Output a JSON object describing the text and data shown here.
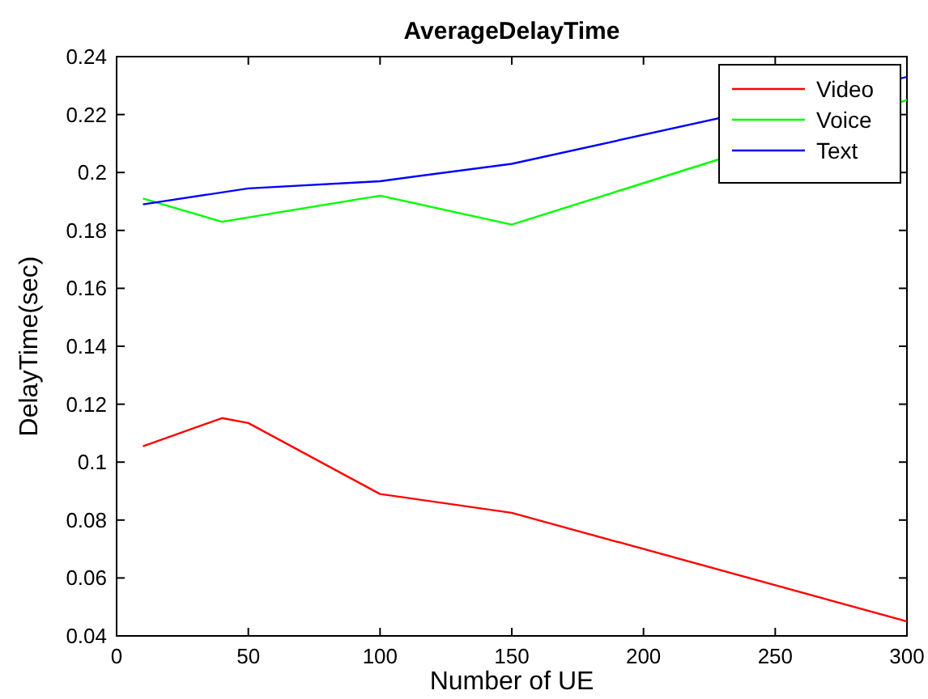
{
  "chart_data": {
    "type": "line",
    "title": "AverageDelayTime",
    "xlabel": "Number of UE",
    "ylabel": "DelayTime(sec)",
    "xlim": [
      0,
      300
    ],
    "xticks": [
      0,
      50,
      100,
      150,
      200,
      250,
      300
    ],
    "ylim": [
      0.04,
      0.24
    ],
    "yticks": [
      0.04,
      0.06,
      0.08,
      0.1,
      0.12,
      0.14,
      0.16,
      0.18,
      0.2,
      0.22,
      0.24
    ],
    "legend": "top right",
    "grid": false,
    "series": [
      {
        "name": "Video",
        "color": "#ff0000",
        "x": [
          10,
          40,
          50,
          100,
          150,
          300
        ],
        "values": [
          0.1055,
          0.1152,
          0.1135,
          0.089,
          0.0825,
          0.045
        ]
      },
      {
        "name": "Voice",
        "color": "#00ff00",
        "x": [
          10,
          40,
          100,
          150,
          300
        ],
        "values": [
          0.191,
          0.183,
          0.192,
          0.182,
          0.225
        ]
      },
      {
        "name": "Text",
        "color": "#0000ff",
        "x": [
          10,
          50,
          100,
          150,
          300
        ],
        "values": [
          0.189,
          0.1945,
          0.197,
          0.203,
          0.233
        ]
      }
    ]
  }
}
